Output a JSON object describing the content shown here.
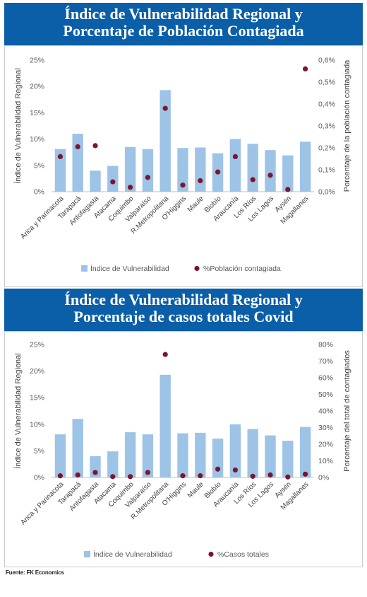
{
  "source": "Fuente: FK Economics",
  "chart_data": [
    {
      "type": "bar",
      "title": "Índice de Vulnerabilidad Regional y Porcentaje de Población Contagiada",
      "title_lines": [
        "Índice de Vulnerabilidad Regional y",
        "Porcentaje de Población Contagiada"
      ],
      "categories": [
        "Arica y Parinacota",
        "Tarapacá",
        "Antofagasta",
        "Atacama",
        "Coquimbo",
        "Valparaíso",
        "R.Metropolitana",
        "O'Higgins",
        "Maule",
        "Biobío",
        "Araucanía",
        "Los Ríos",
        "Los Lagos",
        "Aysén",
        "Magallanes"
      ],
      "series": [
        {
          "name": "Índice de Vulnerabilidad",
          "type": "bar",
          "axis": "left",
          "color": "#9dc3e6",
          "values": [
            8.1,
            11.0,
            4.0,
            4.9,
            8.5,
            8.1,
            19.3,
            8.3,
            8.4,
            7.3,
            10.0,
            9.1,
            7.9,
            6.9,
            9.5
          ]
        },
        {
          "name": "%Población contagiada",
          "type": "scatter",
          "axis": "right",
          "color": "#7b1530",
          "values": [
            0.16,
            0.205,
            0.21,
            0.045,
            0.02,
            0.065,
            0.38,
            0.03,
            0.05,
            0.09,
            0.16,
            0.055,
            0.075,
            0.01,
            0.56
          ]
        }
      ],
      "ylabel": "Índice de Vulnerabilidad Regional",
      "ylabel2": "Porcentaje de la población contagiada",
      "ylim": [
        0,
        25
      ],
      "ylim2": [
        0,
        0.6
      ],
      "yticks": [
        "0%",
        "5%",
        "10%",
        "15%",
        "20%",
        "25%"
      ],
      "yticks2": [
        "0,0%",
        "0,1%",
        "0,2%",
        "0,3%",
        "0,4%",
        "0,5%",
        "0,6%"
      ],
      "legend": "bottom",
      "grid": false
    },
    {
      "type": "bar",
      "title": "Índice de Vulnerabilidad Regional y Porcentaje de casos totales Covid",
      "title_lines": [
        "Índice de Vulnerabilidad Regional y",
        "Porcentaje de casos totales Covid"
      ],
      "categories": [
        "Arica y Parinacota",
        "Tarapacá",
        "Antofagasta",
        "Atacama",
        "Coquimbo",
        "Valparaíso",
        "R.Metropolitana",
        "O'Higgins",
        "Maule",
        "Biobío",
        "Araucanía",
        "Los Ríos",
        "Los Lagos",
        "Aysén",
        "Magallanes"
      ],
      "series": [
        {
          "name": "Índice de Vulnerabilidad",
          "type": "bar",
          "axis": "left",
          "color": "#9dc3e6",
          "values": [
            8.1,
            11.0,
            4.0,
            4.9,
            8.5,
            8.1,
            19.3,
            8.3,
            8.4,
            7.3,
            10.0,
            9.1,
            7.9,
            6.9,
            9.5
          ]
        },
        {
          "name": "%Casos totales",
          "type": "scatter",
          "axis": "right",
          "color": "#7b1530",
          "values": [
            1.0,
            1.5,
            3.0,
            0.5,
            0.5,
            3.0,
            74.0,
            1.0,
            1.0,
            5.0,
            4.5,
            0.7,
            1.5,
            0.3,
            2.0
          ]
        }
      ],
      "ylabel": "Índice de Vulnerabilidad Regional",
      "ylabel2": "Porcentaje del total de contagiados",
      "ylim": [
        0,
        25
      ],
      "ylim2": [
        0,
        80
      ],
      "yticks": [
        "0%",
        "5%",
        "10%",
        "15%",
        "20%",
        "25%"
      ],
      "yticks2": [
        "0%",
        "10%",
        "20%",
        "30%",
        "40%",
        "50%",
        "60%",
        "70%",
        "80%"
      ],
      "legend": "bottom",
      "grid": false
    }
  ]
}
